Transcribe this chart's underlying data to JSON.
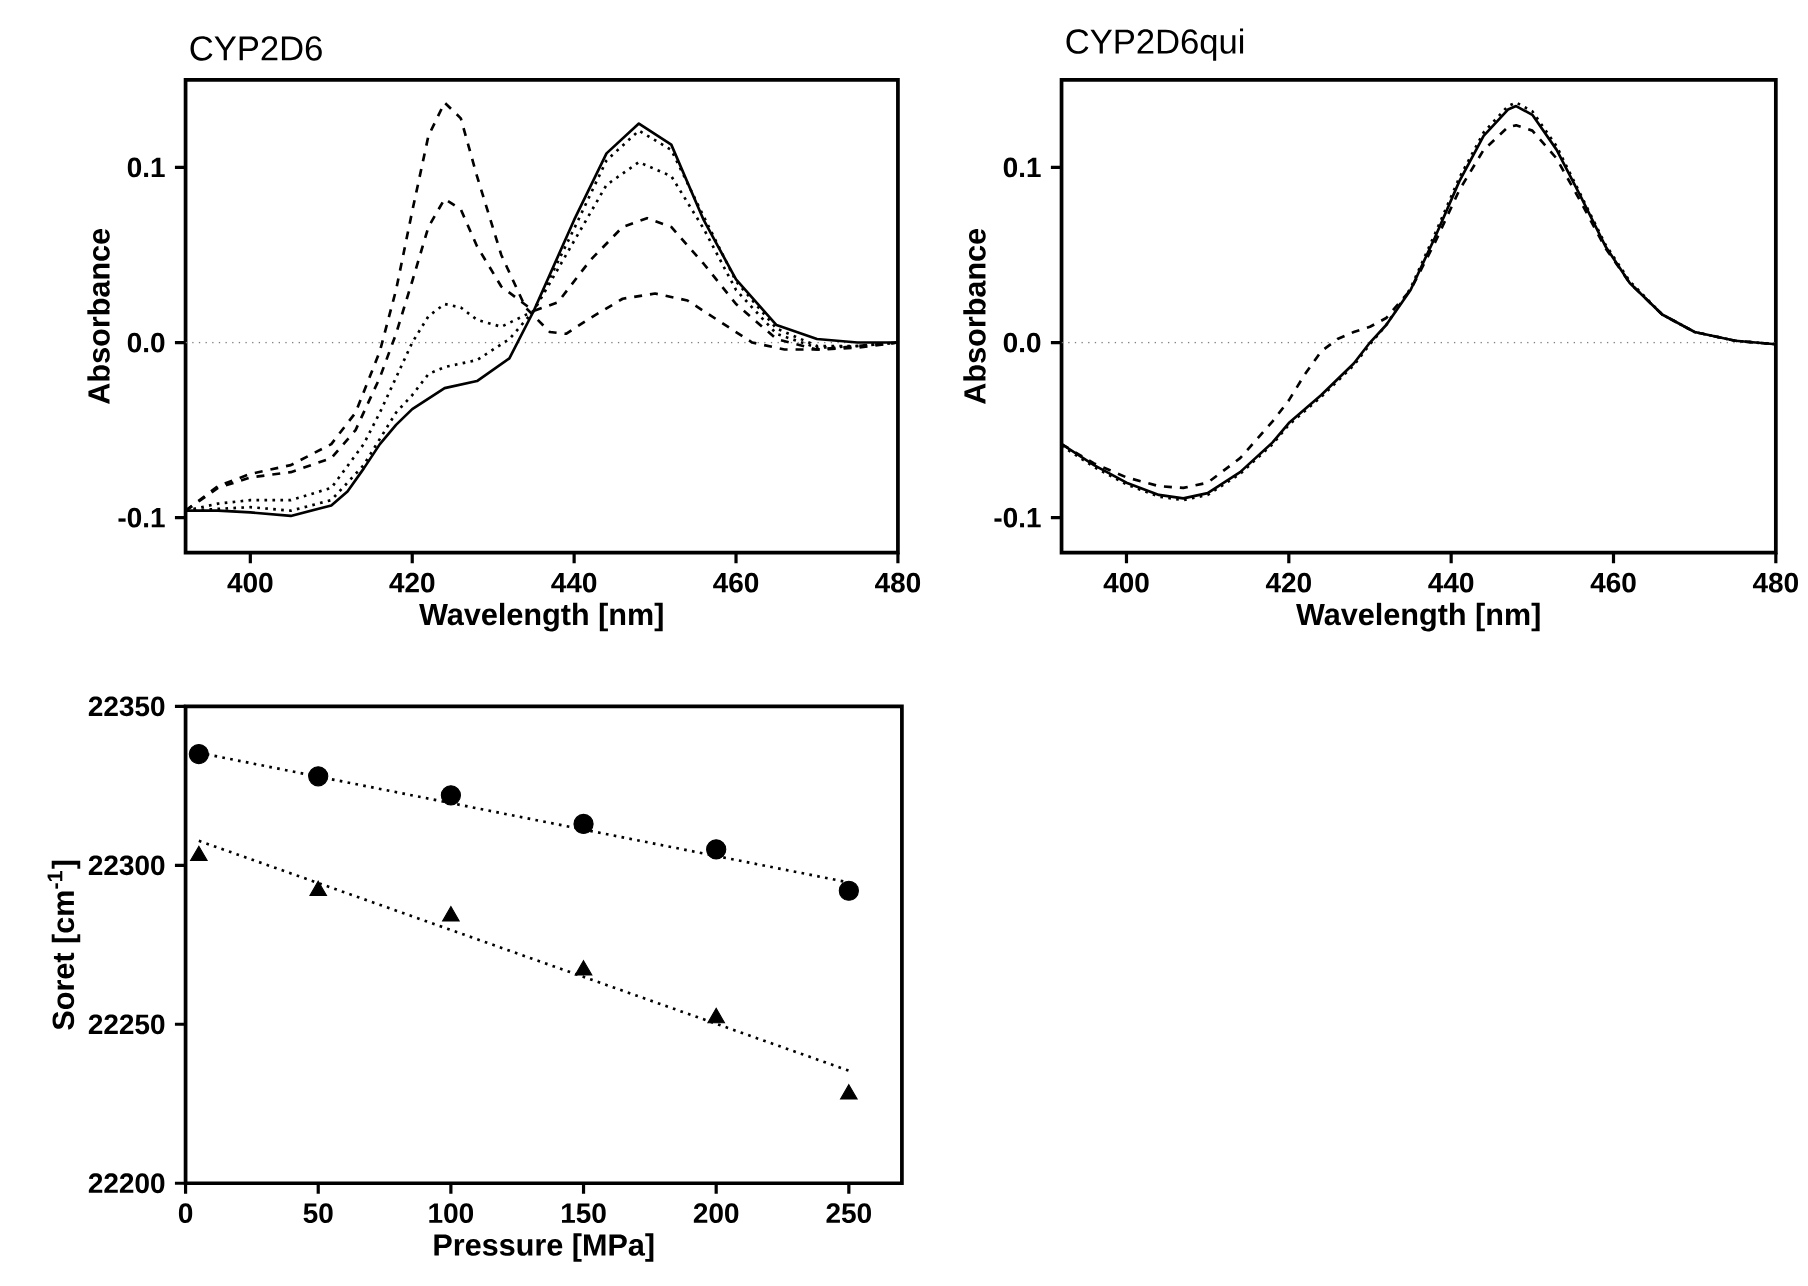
{
  "chart_data": [
    {
      "type": "line",
      "title": "CYP2D6",
      "xlabel": "Wavelength [nm]",
      "ylabel": "Absorbance",
      "xlim": [
        392,
        480
      ],
      "ylim": [
        -0.12,
        0.15
      ],
      "xticks": [
        400,
        420,
        440,
        460,
        480
      ],
      "yticks": [
        -0.1,
        {
          "value": 0,
          "label": "0.0"
        },
        0.1
      ],
      "ref_lines": [
        {
          "axis": "y",
          "value": 0,
          "line_style": "dotted"
        }
      ],
      "series": [
        {
          "color": "#000000",
          "line_style": "dashed",
          "x": [
            392,
            396,
            400,
            405,
            410,
            413,
            416,
            418,
            420,
            422,
            424,
            426,
            428,
            431,
            434,
            437,
            439,
            442,
            446,
            450,
            454,
            458,
            462,
            466,
            470,
            475,
            480
          ],
          "values": [
            -0.096,
            -0.082,
            -0.075,
            -0.07,
            -0.058,
            -0.04,
            -0.005,
            0.03,
            0.075,
            0.118,
            0.137,
            0.128,
            0.095,
            0.05,
            0.02,
            0.006,
            0.005,
            0.014,
            0.025,
            0.028,
            0.024,
            0.012,
            0.0,
            -0.004,
            -0.004,
            -0.002,
            0.0
          ]
        },
        {
          "color": "#000000",
          "line_style": "dashed",
          "x": [
            392,
            396,
            400,
            405,
            410,
            413,
            416,
            418,
            420,
            422,
            424,
            426,
            428,
            431,
            435,
            438,
            442,
            446,
            449,
            452,
            456,
            460,
            465,
            470,
            475,
            480
          ],
          "values": [
            -0.096,
            -0.083,
            -0.077,
            -0.074,
            -0.066,
            -0.05,
            -0.02,
            0.005,
            0.035,
            0.066,
            0.082,
            0.076,
            0.055,
            0.032,
            0.018,
            0.023,
            0.047,
            0.066,
            0.071,
            0.066,
            0.045,
            0.022,
            0.002,
            -0.004,
            -0.003,
            0.0
          ]
        },
        {
          "color": "#000000",
          "line_style": "dotted",
          "x": [
            392,
            396,
            400,
            405,
            410,
            414,
            416,
            418,
            420,
            422,
            424,
            426,
            428,
            431,
            435,
            440,
            444,
            448,
            452,
            456,
            460,
            465,
            470,
            475,
            480
          ],
          "values": [
            -0.096,
            -0.092,
            -0.09,
            -0.09,
            -0.083,
            -0.058,
            -0.04,
            -0.02,
            0.0,
            0.015,
            0.022,
            0.02,
            0.013,
            0.009,
            0.018,
            0.058,
            0.09,
            0.103,
            0.095,
            0.065,
            0.03,
            0.005,
            -0.003,
            -0.002,
            0.0
          ]
        },
        {
          "color": "#000000",
          "line_style": "dotted",
          "x": [
            392,
            396,
            400,
            405,
            410,
            414,
            416,
            418,
            420,
            422,
            424,
            428,
            432,
            435,
            440,
            444,
            448,
            452,
            456,
            460,
            465,
            470,
            475,
            480
          ],
          "values": [
            -0.096,
            -0.095,
            -0.094,
            -0.096,
            -0.09,
            -0.07,
            -0.055,
            -0.04,
            -0.03,
            -0.018,
            -0.014,
            -0.01,
            0.002,
            0.018,
            0.065,
            0.104,
            0.121,
            0.11,
            0.072,
            0.035,
            0.008,
            -0.002,
            -0.002,
            0.0
          ]
        },
        {
          "color": "#000000",
          "line_style": "solid",
          "x": [
            392,
            396,
            400,
            405,
            410,
            412,
            414,
            416,
            418,
            420,
            424,
            428,
            432,
            435,
            440,
            444,
            448,
            452,
            456,
            460,
            465,
            470,
            475,
            480
          ],
          "values": [
            -0.096,
            -0.096,
            -0.097,
            -0.099,
            -0.093,
            -0.085,
            -0.072,
            -0.058,
            -0.047,
            -0.038,
            -0.026,
            -0.022,
            -0.009,
            0.018,
            0.07,
            0.108,
            0.125,
            0.113,
            0.07,
            0.036,
            0.01,
            0.002,
            0.0,
            0.0
          ]
        }
      ]
    },
    {
      "type": "line",
      "title": "CYP2D6qui",
      "xlabel": "Wavelength [nm]",
      "ylabel": "Absorbance",
      "xlim": [
        392,
        480
      ],
      "ylim": [
        -0.12,
        0.15
      ],
      "xticks": [
        400,
        420,
        440,
        460,
        480
      ],
      "yticks": [
        -0.1,
        {
          "value": 0,
          "label": "0.0"
        },
        0.1
      ],
      "ref_lines": [
        {
          "axis": "y",
          "value": 0,
          "line_style": "dotted"
        }
      ],
      "series": [
        {
          "color": "#000000",
          "line_style": "solid",
          "x": [
            392,
            396,
            400,
            404,
            407,
            410,
            414,
            418,
            420,
            424,
            428,
            430,
            432,
            435,
            438,
            441,
            444,
            447,
            448,
            450,
            453,
            456,
            459,
            462,
            466,
            470,
            475,
            480
          ],
          "values": [
            -0.058,
            -0.07,
            -0.08,
            -0.087,
            -0.089,
            -0.086,
            -0.074,
            -0.057,
            -0.046,
            -0.03,
            -0.012,
            0.0,
            0.01,
            0.03,
            0.06,
            0.092,
            0.118,
            0.133,
            0.135,
            0.13,
            0.11,
            0.083,
            0.055,
            0.034,
            0.016,
            0.006,
            0.001,
            -0.001
          ]
        },
        {
          "color": "#000000",
          "line_style": "dotted",
          "x": [
            392,
            396,
            400,
            404,
            407,
            410,
            414,
            418,
            420,
            424,
            428,
            430,
            432,
            435,
            438,
            441,
            444,
            447,
            448,
            450,
            453,
            456,
            459,
            462,
            466,
            470,
            475,
            480
          ],
          "values": [
            -0.059,
            -0.071,
            -0.081,
            -0.088,
            -0.09,
            -0.087,
            -0.075,
            -0.058,
            -0.047,
            -0.031,
            -0.013,
            -0.001,
            0.01,
            0.031,
            0.062,
            0.094,
            0.12,
            0.135,
            0.137,
            0.132,
            0.112,
            0.084,
            0.056,
            0.035,
            0.016,
            0.006,
            0.001,
            -0.001
          ]
        },
        {
          "color": "#000000",
          "line_style": "dashed",
          "x": [
            392,
            396,
            400,
            404,
            407,
            410,
            414,
            418,
            420,
            422,
            424,
            426,
            428,
            430,
            432,
            435,
            438,
            441,
            444,
            447,
            448,
            450,
            453,
            456,
            459,
            462,
            466,
            470,
            475,
            480
          ],
          "values": [
            -0.058,
            -0.069,
            -0.077,
            -0.082,
            -0.083,
            -0.08,
            -0.066,
            -0.045,
            -0.033,
            -0.018,
            -0.005,
            0.002,
            0.006,
            0.009,
            0.014,
            0.03,
            0.057,
            0.087,
            0.11,
            0.123,
            0.124,
            0.121,
            0.105,
            0.08,
            0.054,
            0.034,
            0.016,
            0.006,
            0.001,
            -0.001
          ]
        }
      ]
    },
    {
      "type": "scatter",
      "xlabel": "Pressure [MPa]",
      "ylabel": "Soret [cm$^{-1}$]",
      "xlim": [
        0,
        270
      ],
      "ylim": [
        22200,
        22350
      ],
      "xticks": [
        0,
        50,
        100,
        150,
        200,
        250
      ],
      "yticks": [
        22200,
        22250,
        22300,
        22350
      ],
      "series": [
        {
          "type": "scatter",
          "marker": "circle",
          "color": "#000000",
          "x": [
            5,
            50,
            100,
            150,
            200,
            250
          ],
          "values": [
            22335,
            22328,
            22322,
            22313,
            22305,
            22292
          ]
        },
        {
          "type": "scatter",
          "marker": "triangle",
          "color": "#000000",
          "x": [
            5,
            50,
            100,
            150,
            200,
            250
          ],
          "values": [
            22303,
            22292,
            22284,
            22267,
            22252,
            22228
          ]
        },
        {
          "type": "line",
          "line_style": "dotted",
          "color": "#000000",
          "x": [
            5,
            250
          ],
          "values": [
            22335.4,
            22294.6
          ]
        },
        {
          "type": "line",
          "line_style": "dotted",
          "color": "#000000",
          "x": [
            5,
            250
          ],
          "values": [
            22307.7,
            22235.4
          ]
        }
      ]
    }
  ]
}
